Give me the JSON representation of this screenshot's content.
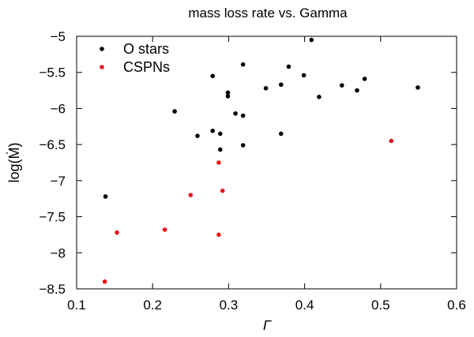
{
  "chart_data": {
    "type": "scatter",
    "title": "mass loss rate vs. Gamma",
    "xlabel": "Γ",
    "ylabel": "log(Ṁ)",
    "xlim": [
      0.1,
      0.6
    ],
    "ylim": [
      -8.5,
      -5
    ],
    "xticks": [
      0.1,
      0.2,
      0.3,
      0.4,
      0.5,
      0.6
    ],
    "yticks": [
      -5,
      -5.5,
      -6,
      -6.5,
      -7,
      -7.5,
      -8,
      -8.5
    ],
    "xtick_labels": [
      "0.1",
      "0.2",
      "0.3",
      "0.4",
      "0.5",
      "0.6"
    ],
    "ytick_labels": [
      "−5",
      "−5.5",
      "−6",
      "−6.5",
      "−7",
      "−7.5",
      "−8",
      "−8.5"
    ],
    "grid": false,
    "legend_position": "top-left",
    "series": [
      {
        "name": "O stars",
        "color": "#000000",
        "points": [
          [
            0.138,
            -7.22
          ],
          [
            0.229,
            -6.04
          ],
          [
            0.259,
            -6.38
          ],
          [
            0.279,
            -5.55
          ],
          [
            0.279,
            -6.31
          ],
          [
            0.289,
            -6.35
          ],
          [
            0.289,
            -6.57
          ],
          [
            0.299,
            -5.78
          ],
          [
            0.299,
            -5.83
          ],
          [
            0.309,
            -6.07
          ],
          [
            0.319,
            -5.39
          ],
          [
            0.319,
            -6.1
          ],
          [
            0.319,
            -6.51
          ],
          [
            0.349,
            -5.72
          ],
          [
            0.369,
            -5.67
          ],
          [
            0.369,
            -6.35
          ],
          [
            0.379,
            -5.42
          ],
          [
            0.399,
            -5.54
          ],
          [
            0.409,
            -5.05
          ],
          [
            0.419,
            -5.84
          ],
          [
            0.449,
            -5.68
          ],
          [
            0.469,
            -5.75
          ],
          [
            0.479,
            -5.59
          ],
          [
            0.549,
            -5.71
          ]
        ]
      },
      {
        "name": "CSPNs",
        "color": "#e8141b",
        "points": [
          [
            0.137,
            -8.4
          ],
          [
            0.153,
            -7.72
          ],
          [
            0.216,
            -7.68
          ],
          [
            0.25,
            -7.2
          ],
          [
            0.287,
            -6.75
          ],
          [
            0.287,
            -7.75
          ],
          [
            0.292,
            -7.14
          ],
          [
            0.514,
            -6.45
          ]
        ]
      }
    ]
  }
}
